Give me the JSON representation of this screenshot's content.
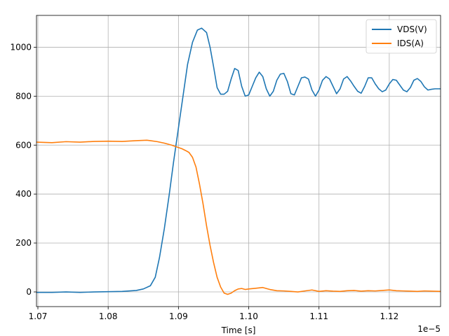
{
  "chart_data": {
    "type": "line",
    "title": "",
    "xlabel": "Time [s]",
    "ylabel": "",
    "x_offset_label": "1e−5",
    "xlim": [
      1.0698,
      1.1273
    ],
    "ylim": [
      -60,
      1130
    ],
    "x_ticks": [
      1.07,
      1.08,
      1.09,
      1.1,
      1.11,
      1.12
    ],
    "x_tick_labels": [
      "1.07",
      "1.08",
      "1.09",
      "1.10",
      "1.11",
      "1.12"
    ],
    "y_ticks": [
      0,
      200,
      400,
      600,
      800,
      1000
    ],
    "y_tick_labels": [
      "0",
      "200",
      "400",
      "600",
      "800",
      "1000"
    ],
    "grid": true,
    "legend_position": "top-right",
    "series": [
      {
        "name": "VDS(V)",
        "color": "#1f77b4",
        "x": [
          1.0698,
          1.072,
          1.074,
          1.076,
          1.078,
          1.08,
          1.082,
          1.084,
          1.085,
          1.086,
          1.0867,
          1.0873,
          1.088,
          1.0887,
          1.0893,
          1.09,
          1.0907,
          1.0913,
          1.092,
          1.0927,
          1.0933,
          1.094,
          1.0945,
          1.095,
          1.0955,
          1.096,
          1.0965,
          1.097,
          1.0975,
          1.098,
          1.0985,
          1.099,
          1.0995,
          1.1,
          1.1005,
          1.101,
          1.1015,
          1.102,
          1.1025,
          1.103,
          1.1035,
          1.104,
          1.1045,
          1.105,
          1.1055,
          1.106,
          1.1065,
          1.107,
          1.1075,
          1.108,
          1.1085,
          1.109,
          1.1095,
          1.11,
          1.1105,
          1.111,
          1.1115,
          1.112,
          1.1125,
          1.113,
          1.1135,
          1.114,
          1.1145,
          1.115,
          1.1155,
          1.116,
          1.1165,
          1.117,
          1.1175,
          1.118,
          1.1185,
          1.119,
          1.1195,
          1.12,
          1.1205,
          1.121,
          1.1215,
          1.122,
          1.1225,
          1.123,
          1.1235,
          1.124,
          1.1245,
          1.125,
          1.1255,
          1.126,
          1.1265,
          1.1273
        ],
        "values": [
          -2,
          -2,
          0,
          -2,
          0,
          1,
          2,
          6,
          12,
          25,
          60,
          140,
          260,
          400,
          530,
          670,
          810,
          930,
          1020,
          1070,
          1078,
          1060,
          1000,
          920,
          835,
          808,
          808,
          820,
          870,
          913,
          905,
          840,
          800,
          805,
          840,
          875,
          898,
          880,
          830,
          800,
          820,
          865,
          890,
          893,
          860,
          810,
          805,
          840,
          875,
          878,
          870,
          825,
          800,
          825,
          865,
          880,
          870,
          840,
          810,
          830,
          870,
          880,
          862,
          840,
          820,
          812,
          840,
          875,
          875,
          850,
          830,
          818,
          825,
          850,
          868,
          865,
          845,
          825,
          818,
          835,
          865,
          872,
          860,
          838,
          825,
          828,
          830,
          830
        ]
      },
      {
        "name": "IDS(A)",
        "color": "#ff7f0e",
        "x": [
          1.0698,
          1.072,
          1.074,
          1.076,
          1.078,
          1.08,
          1.082,
          1.084,
          1.0855,
          1.086,
          1.087,
          1.088,
          1.089,
          1.0895,
          1.09,
          1.0905,
          1.091,
          1.0915,
          1.092,
          1.0925,
          1.093,
          1.0935,
          1.094,
          1.0945,
          1.095,
          1.0955,
          1.096,
          1.0965,
          1.097,
          1.0975,
          1.098,
          1.0985,
          1.099,
          1.0995,
          1.1,
          1.101,
          1.102,
          1.103,
          1.104,
          1.105,
          1.106,
          1.107,
          1.108,
          1.109,
          1.11,
          1.111,
          1.112,
          1.113,
          1.114,
          1.115,
          1.116,
          1.117,
          1.118,
          1.119,
          1.12,
          1.121,
          1.122,
          1.123,
          1.124,
          1.125,
          1.126,
          1.1273
        ],
        "values": [
          612,
          610,
          614,
          612,
          615,
          616,
          615,
          618,
          620,
          618,
          614,
          608,
          600,
          595,
          590,
          585,
          578,
          570,
          550,
          510,
          440,
          360,
          270,
          190,
          120,
          60,
          20,
          -5,
          -10,
          -5,
          5,
          12,
          14,
          10,
          12,
          15,
          18,
          10,
          5,
          4,
          2,
          0,
          4,
          8,
          2,
          5,
          3,
          2,
          5,
          6,
          3,
          5,
          4,
          6,
          8,
          5,
          4,
          3,
          2,
          4,
          3,
          2
        ]
      }
    ]
  }
}
